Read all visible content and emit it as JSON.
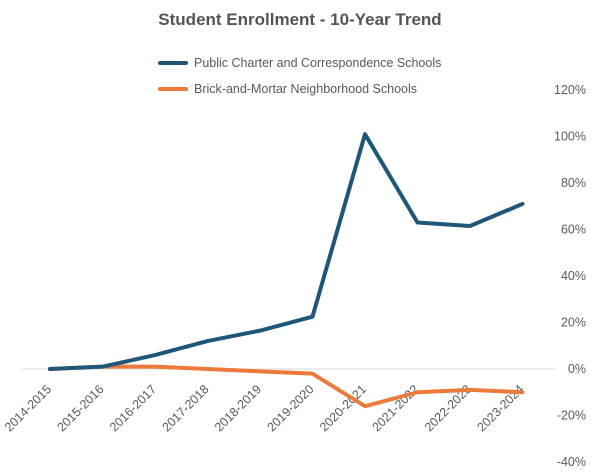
{
  "chart_data": {
    "type": "line",
    "title": "Student Enrollment - 10-Year Trend",
    "categories": [
      "2014-2015",
      "2015-2016",
      "2016-2017",
      "2017-2018",
      "2018-2019",
      "2019-2020",
      "2020-2021",
      "2021-2022",
      "2022-2023",
      "2023-2024"
    ],
    "series": [
      {
        "name": "Public Charter and Correspondence Schools",
        "color": "#1f5778",
        "values": [
          0,
          1,
          6,
          12,
          16.5,
          22.5,
          101,
          63,
          61.5,
          71
        ]
      },
      {
        "name": "Brick-and-Mortar Neighborhood Schools",
        "color": "#ec7b3b",
        "values": [
          0,
          1,
          1,
          0,
          -1,
          -2,
          -16,
          -10,
          -9,
          -10
        ]
      }
    ],
    "ylim": [
      -40,
      120
    ],
    "yticks": [
      "120%",
      "100%",
      "80%",
      "60%",
      "40%",
      "20%",
      "0%",
      "-20%",
      "-40%"
    ],
    "ytick_values": [
      120,
      100,
      80,
      60,
      40,
      20,
      0,
      -20,
      -40
    ],
    "y_axis_position": "right",
    "legend_position": "top-center",
    "grid": false
  }
}
